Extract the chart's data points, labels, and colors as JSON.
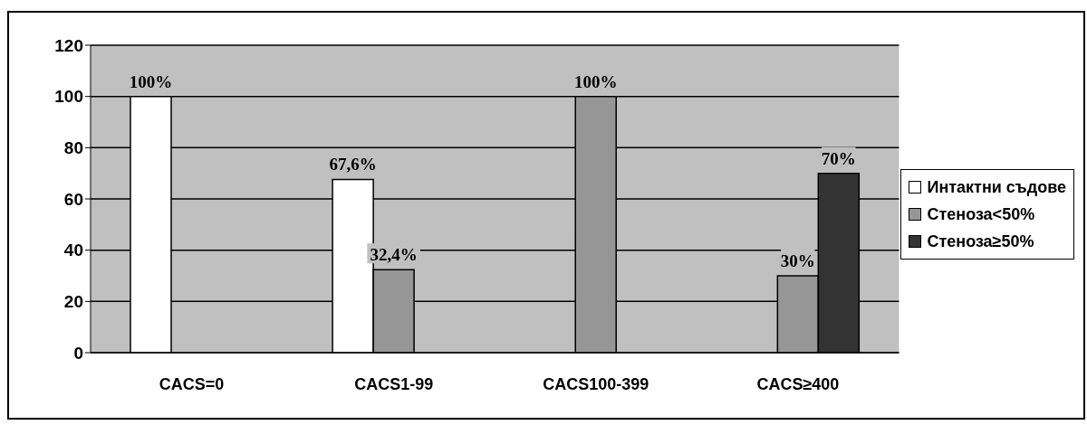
{
  "chart_data": {
    "type": "bar",
    "categories": [
      "CACS=0",
      "CACS1-99",
      "CACS100-399",
      "CACS≥400"
    ],
    "series": [
      {
        "name": "Интактни съдове",
        "color": "#ffffff",
        "values": [
          100,
          67.6,
          null,
          null
        ],
        "value_labels": [
          "100%",
          "67,6%",
          null,
          null
        ]
      },
      {
        "name": "Стеноза<50%",
        "color": "#969696",
        "values": [
          null,
          32.4,
          100,
          30
        ],
        "value_labels": [
          null,
          "32,4%",
          "100%",
          "30%"
        ]
      },
      {
        "name": "Стеноза≥50%",
        "color": "#333333",
        "values": [
          null,
          null,
          null,
          70
        ],
        "value_labels": [
          null,
          null,
          null,
          "70%"
        ]
      }
    ],
    "ylim": [
      0,
      120
    ],
    "yticks": [
      0,
      20,
      40,
      60,
      80,
      100,
      120
    ],
    "grid": "y",
    "legend": "right"
  }
}
